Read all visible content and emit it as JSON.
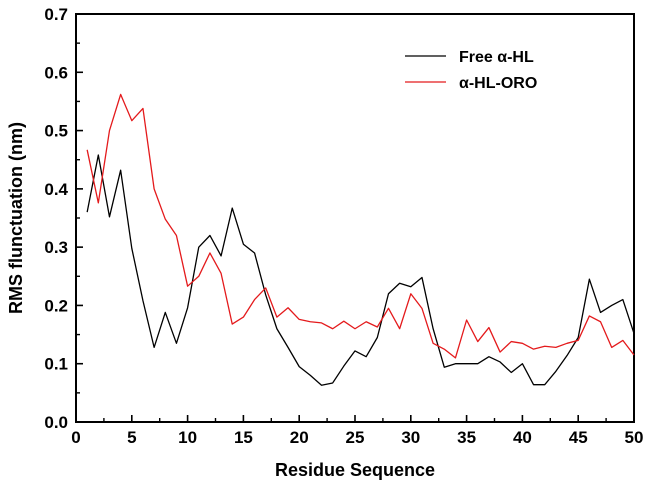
{
  "chart_data": {
    "type": "line",
    "title": "",
    "xlabel": "Residue  Sequence",
    "ylabel": "RMS flunctuation  (nm)",
    "xlim": [
      0,
      50
    ],
    "ylim": [
      0.0,
      0.7
    ],
    "xticks": [
      0,
      5,
      10,
      15,
      20,
      25,
      30,
      35,
      40,
      45,
      50
    ],
    "xtick_labels": [
      "0",
      "5",
      "10",
      "15",
      "20",
      "25",
      "30",
      "35",
      "40",
      "45",
      "50"
    ],
    "yticks": [
      0.0,
      0.1,
      0.2,
      0.3,
      0.4,
      0.5,
      0.6,
      0.7
    ],
    "ytick_labels": [
      "0.0",
      "0.1",
      "0.2",
      "0.3",
      "0.4",
      "0.5",
      "0.6",
      "0.7"
    ],
    "grid": false,
    "legend_position": "top-right",
    "x": [
      1,
      2,
      3,
      4,
      5,
      6,
      7,
      8,
      9,
      10,
      11,
      12,
      13,
      14,
      15,
      16,
      17,
      18,
      19,
      20,
      21,
      22,
      23,
      24,
      25,
      26,
      27,
      28,
      29,
      30,
      31,
      32,
      33,
      34,
      35,
      36,
      37,
      38,
      39,
      40,
      41,
      42,
      43,
      44,
      45,
      46,
      47,
      48,
      49,
      50
    ],
    "series": [
      {
        "name": "Free α-HL",
        "color": "#000000",
        "values": [
          0.36,
          0.458,
          0.352,
          0.432,
          0.298,
          0.208,
          0.128,
          0.188,
          0.135,
          0.196,
          0.3,
          0.32,
          0.285,
          0.367,
          0.305,
          0.29,
          0.218,
          0.16,
          0.128,
          0.095,
          0.08,
          0.063,
          0.067,
          0.096,
          0.122,
          0.112,
          0.145,
          0.22,
          0.238,
          0.232,
          0.248,
          0.16,
          0.094,
          0.1,
          0.1,
          0.1,
          0.112,
          0.103,
          0.085,
          0.1,
          0.064,
          0.064,
          0.087,
          0.114,
          0.145,
          0.245,
          0.188,
          0.2,
          0.21,
          0.152
        ]
      },
      {
        "name": "α-HL-ORO",
        "color": "#e41a1c",
        "values": [
          0.467,
          0.376,
          0.5,
          0.562,
          0.517,
          0.538,
          0.4,
          0.348,
          0.32,
          0.233,
          0.25,
          0.29,
          0.255,
          0.168,
          0.18,
          0.21,
          0.23,
          0.18,
          0.196,
          0.176,
          0.172,
          0.17,
          0.16,
          0.173,
          0.16,
          0.172,
          0.163,
          0.195,
          0.16,
          0.22,
          0.195,
          0.135,
          0.125,
          0.11,
          0.175,
          0.138,
          0.162,
          0.12,
          0.138,
          0.135,
          0.125,
          0.13,
          0.128,
          0.135,
          0.14,
          0.182,
          0.172,
          0.128,
          0.14,
          0.115
        ]
      }
    ]
  }
}
